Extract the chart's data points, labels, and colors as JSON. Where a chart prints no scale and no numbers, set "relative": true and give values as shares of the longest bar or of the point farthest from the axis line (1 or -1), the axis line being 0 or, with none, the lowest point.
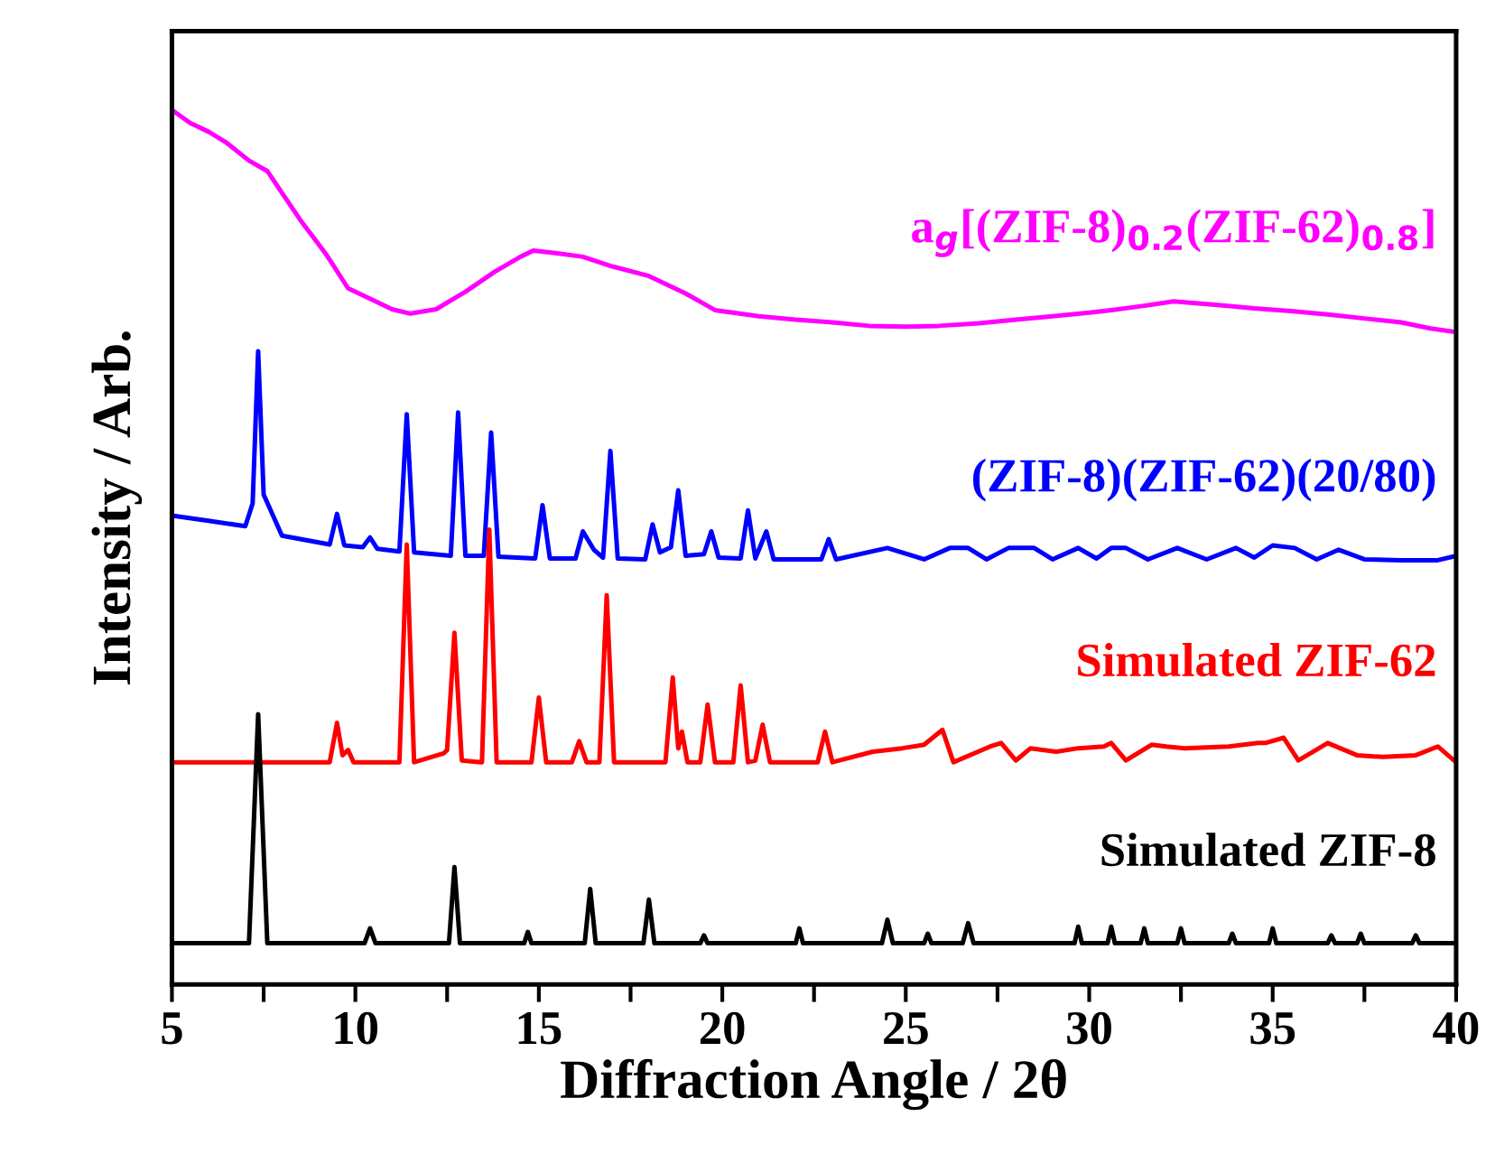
{
  "chart_data": {
    "type": "line",
    "relative": true,
    "xlabel": "Diffraction Angle / 2θ",
    "ylabel": "Intensity / Arb.",
    "xlim": [
      5,
      40
    ],
    "xticks": [
      5,
      {
        "value": 7.5,
        "label": null
      },
      10,
      {
        "value": 12.5,
        "label": null
      },
      15,
      {
        "value": 17.5,
        "label": null
      },
      20,
      {
        "value": 22.5,
        "label": null
      },
      25,
      {
        "value": 27.5,
        "label": null
      },
      30,
      {
        "value": 32.5,
        "label": null
      },
      35,
      {
        "value": 37.5,
        "label": null
      },
      40
    ],
    "grid": false,
    "legend": false,
    "marker": "none",
    "line_style": "solid",
    "series": [
      {
        "name": "a$_{g}$[(ZIF-8)$_{0.2}$(ZIF-62)$_{0.8}$]",
        "color": "#ff00ff",
        "x": [
          5.0,
          5.5,
          6.0,
          6.5,
          7.1,
          7.6,
          8.0,
          8.5,
          9.2,
          9.8,
          10.5,
          11.0,
          11.5,
          12.2,
          13.0,
          13.8,
          14.5,
          14.85,
          15.5,
          16.2,
          17.0,
          18.0,
          19.0,
          19.8,
          21.0,
          22.0,
          23.0,
          24.0,
          25.0,
          25.9,
          27.0,
          28.0,
          29.0,
          30.0,
          30.6,
          31.5,
          32.3,
          33.5,
          34.5,
          35.5,
          36.5,
          37.6,
          38.5,
          39.3,
          40.0
        ],
        "values": [
          1.0,
          0.985,
          0.975,
          0.962,
          0.942,
          0.93,
          0.905,
          0.874,
          0.835,
          0.796,
          0.782,
          0.772,
          0.767,
          0.772,
          0.792,
          0.815,
          0.832,
          0.839,
          0.836,
          0.832,
          0.821,
          0.81,
          0.79,
          0.771,
          0.764,
          0.76,
          0.757,
          0.753,
          0.752,
          0.753,
          0.756,
          0.76,
          0.764,
          0.768,
          0.771,
          0.776,
          0.781,
          0.777,
          0.773,
          0.77,
          0.766,
          0.761,
          0.757,
          0.75,
          0.746
        ]
      },
      {
        "name": "(ZIF-8)(ZIF-62)(20/80)",
        "color": "#0000ff",
        "x": [
          5.0,
          6.0,
          7.0,
          7.2,
          7.35,
          7.5,
          8.0,
          9.3,
          9.5,
          9.7,
          10.2,
          10.4,
          10.6,
          11.2,
          11.4,
          11.6,
          12.6,
          12.8,
          13.0,
          13.5,
          13.7,
          13.9,
          14.9,
          15.1,
          15.3,
          16.0,
          16.2,
          16.5,
          16.75,
          16.95,
          17.15,
          17.9,
          18.1,
          18.3,
          18.6,
          18.8,
          19.0,
          19.5,
          19.7,
          19.9,
          20.5,
          20.7,
          20.9,
          21.2,
          21.4,
          22.7,
          22.9,
          23.1,
          24.5,
          25.5,
          26.2,
          26.7,
          27.2,
          27.8,
          28.5,
          29.0,
          29.7,
          30.2,
          30.6,
          31.0,
          31.6,
          32.4,
          33.2,
          34.0,
          34.5,
          35.0,
          35.6,
          36.2,
          36.8,
          37.5,
          38.5,
          39.5,
          40.0
        ],
        "values": [
          0.536,
          0.53,
          0.524,
          0.55,
          0.724,
          0.56,
          0.513,
          0.503,
          0.538,
          0.502,
          0.5,
          0.511,
          0.498,
          0.495,
          0.652,
          0.494,
          0.49,
          0.654,
          0.49,
          0.49,
          0.631,
          0.489,
          0.487,
          0.548,
          0.487,
          0.487,
          0.518,
          0.497,
          0.488,
          0.61,
          0.487,
          0.486,
          0.526,
          0.494,
          0.5,
          0.565,
          0.49,
          0.492,
          0.518,
          0.488,
          0.487,
          0.542,
          0.487,
          0.518,
          0.486,
          0.486,
          0.509,
          0.486,
          0.499,
          0.486,
          0.499,
          0.499,
          0.486,
          0.499,
          0.499,
          0.486,
          0.499,
          0.487,
          0.499,
          0.499,
          0.486,
          0.499,
          0.486,
          0.499,
          0.488,
          0.502,
          0.499,
          0.486,
          0.497,
          0.486,
          0.485,
          0.485,
          0.49
        ]
      },
      {
        "name": "Simulated ZIF-62",
        "color": "#ff0000",
        "x": [
          5.0,
          9.3,
          9.5,
          9.65,
          9.8,
          9.95,
          11.2,
          11.4,
          11.6,
          12.4,
          12.5,
          12.7,
          12.9,
          13.45,
          13.65,
          13.85,
          14.8,
          15.0,
          15.2,
          15.9,
          16.1,
          16.3,
          16.65,
          16.85,
          17.05,
          18.45,
          18.65,
          18.8,
          18.9,
          19.05,
          19.4,
          19.6,
          19.8,
          20.3,
          20.5,
          20.7,
          20.9,
          21.1,
          21.3,
          22.6,
          22.8,
          23.0,
          24.1,
          24.9,
          25.5,
          26.0,
          26.3,
          27.3,
          27.6,
          28.0,
          28.4,
          29.1,
          29.7,
          30.4,
          30.6,
          31.0,
          31.7,
          32.1,
          32.6,
          33.8,
          34.6,
          34.8,
          35.3,
          35.7,
          36.5,
          37.3,
          38.0,
          38.9,
          39.5,
          40.0
        ],
        "values": [
          0.254,
          0.254,
          0.299,
          0.262,
          0.268,
          0.254,
          0.254,
          0.503,
          0.254,
          0.264,
          0.268,
          0.402,
          0.256,
          0.254,
          0.52,
          0.254,
          0.254,
          0.328,
          0.254,
          0.254,
          0.278,
          0.254,
          0.254,
          0.445,
          0.254,
          0.254,
          0.351,
          0.27,
          0.289,
          0.254,
          0.254,
          0.32,
          0.254,
          0.254,
          0.342,
          0.254,
          0.256,
          0.297,
          0.254,
          0.254,
          0.289,
          0.254,
          0.266,
          0.27,
          0.274,
          0.291,
          0.254,
          0.272,
          0.276,
          0.256,
          0.27,
          0.266,
          0.27,
          0.272,
          0.276,
          0.256,
          0.274,
          0.272,
          0.27,
          0.272,
          0.276,
          0.276,
          0.282,
          0.256,
          0.276,
          0.262,
          0.26,
          0.262,
          0.272,
          0.254
        ]
      },
      {
        "name": "Simulated ZIF-8",
        "color": "#000000",
        "x": [
          5.0,
          7.1,
          7.35,
          7.6,
          10.25,
          10.4,
          10.55,
          12.55,
          12.7,
          12.85,
          14.6,
          14.7,
          14.8,
          16.25,
          16.4,
          16.55,
          17.85,
          18.0,
          18.15,
          19.4,
          19.5,
          19.6,
          22.0,
          22.1,
          22.2,
          24.35,
          24.5,
          24.65,
          25.5,
          25.6,
          25.7,
          26.55,
          26.7,
          26.85,
          29.6,
          29.7,
          29.8,
          30.5,
          30.6,
          30.7,
          31.4,
          31.5,
          31.6,
          32.4,
          32.5,
          32.6,
          33.8,
          33.9,
          34.0,
          34.9,
          35.0,
          35.1,
          36.5,
          36.6,
          36.7,
          37.3,
          37.4,
          37.5,
          38.8,
          38.9,
          39.0,
          40.0
        ],
        "values": [
          0.047,
          0.047,
          0.309,
          0.047,
          0.047,
          0.064,
          0.047,
          0.047,
          0.134,
          0.047,
          0.047,
          0.06,
          0.047,
          0.047,
          0.109,
          0.047,
          0.047,
          0.097,
          0.047,
          0.047,
          0.056,
          0.047,
          0.047,
          0.064,
          0.047,
          0.047,
          0.074,
          0.047,
          0.047,
          0.058,
          0.047,
          0.047,
          0.07,
          0.047,
          0.047,
          0.066,
          0.047,
          0.047,
          0.066,
          0.047,
          0.047,
          0.064,
          0.047,
          0.047,
          0.064,
          0.047,
          0.047,
          0.058,
          0.047,
          0.047,
          0.064,
          0.047,
          0.047,
          0.056,
          0.047,
          0.047,
          0.058,
          0.047,
          0.047,
          0.056,
          0.047,
          0.047
        ]
      }
    ]
  }
}
